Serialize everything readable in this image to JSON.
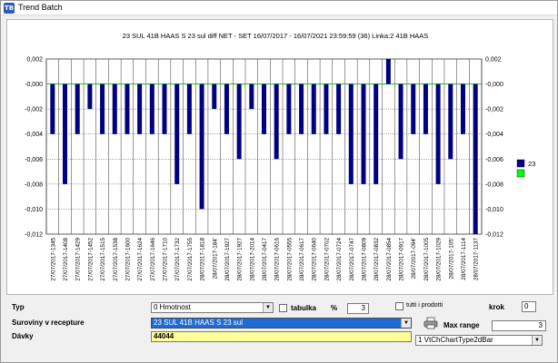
{
  "window": {
    "title": "Trend Batch",
    "icon": "trend-app-icon"
  },
  "chart_data": {
    "type": "bar",
    "title": "23 SUL 41B HAAS S 23 sul diff  NET - SET  16/07/2017 - 16/07/2021 23:59:59 (36) Linka:2  41B HAAS",
    "categories": [
      "27/07/2017-1345",
      "27/07/2017-1408",
      "27/07/2017-1429",
      "27/07/2017-1452",
      "27/07/2017-1515",
      "27/07/2017-1538",
      "27/07/2017-1600",
      "27/07/2017-1624",
      "27/07/2017-1646",
      "27/07/2017-1710",
      "27/07/2017-1732",
      "27/07/2017-1755",
      "28/07/2017-1818",
      "28/07/2017-184'",
      "28/07/2017-1927",
      "28/07/2017-1927",
      "28/07/2017-2014",
      "28/07/2017-0417",
      "28/07/2017-0616",
      "28/07/2017-0555",
      "28/07/2017-0617",
      "28/07/2017-0640",
      "28/07/2017-0702",
      "28/07/2017-0724",
      "28/07/2017-0747",
      "28/07/2017-0809",
      "28/07/2017-0832",
      "28/07/2017-0854",
      "28/07/2017-0917",
      "28/07/2017-094'",
      "28/07/2017-1005",
      "28/07/2017-1029",
      "28/07/2017-105'",
      "28/07/2017-1114",
      "28/07/2017-1137"
    ],
    "series": [
      {
        "name": "23",
        "color": "#000080",
        "values": [
          -0.004,
          -0.008,
          -0.004,
          -0.002,
          -0.004,
          -0.004,
          -0.004,
          -0.004,
          -0.004,
          -0.004,
          -0.008,
          -0.004,
          -0.01,
          -0.002,
          -0.004,
          -0.006,
          -0.002,
          -0.004,
          -0.006,
          -0.004,
          -0.004,
          -0.004,
          -0.004,
          -0.004,
          -0.008,
          -0.008,
          -0.008,
          0.002,
          -0.006,
          -0.004,
          -0.004,
          -0.008,
          -0.006,
          -0.004,
          -0.012
        ]
      }
    ],
    "second_legend_color": "#00ff00",
    "ylim": [
      -0.012,
      0.002
    ],
    "yticks": [
      0.002,
      0.0,
      -0.002,
      -0.004,
      -0.006,
      -0.008,
      -0.01,
      -0.012
    ],
    "ytick_labels": [
      "0,002",
      "-0,000",
      "-0,002",
      "-0,004",
      "-0,006",
      "-0,008",
      "-0,010",
      "-0,012"
    ],
    "grid": true,
    "legend": "right"
  },
  "form": {
    "typ_label": "Typ",
    "typ_value": "0 Hmotnost",
    "tabulka_label": "tabulka",
    "percent_label": "%",
    "percent_value": "3",
    "tutti_label": "tutti i prodotti",
    "krok_label": "krok",
    "krok_value": "0",
    "suroviny_label": "Suroviny v recepture",
    "suroviny_value": "23 SUL 41B HAAS S 23 sul",
    "max_range_label": "Max range",
    "max_range_value": "3",
    "davky_label": "Dávky",
    "davky_value": "44044",
    "chart_type_value": "1 VtChChartType2dBar",
    "dropdown_arrow": "▼"
  }
}
